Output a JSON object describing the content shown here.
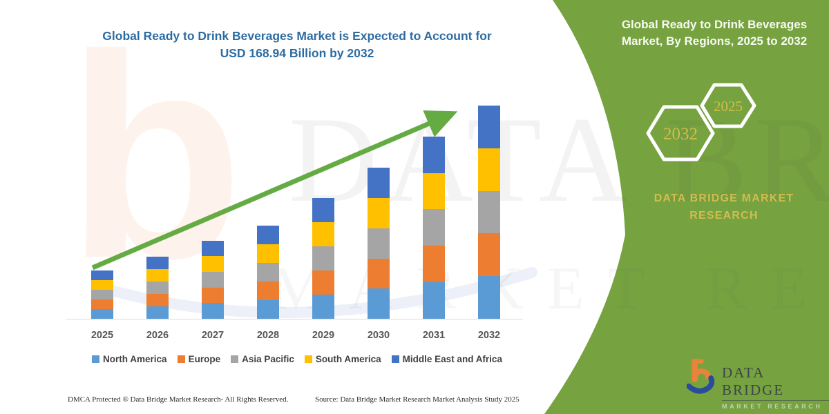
{
  "header": {
    "title_line1": "Global Ready to Drink Beverages Market is Expected to Account for",
    "title_line2": "USD 168.94 Billion by 2032"
  },
  "side_panel": {
    "title": "Global Ready to Drink Beverages Market, By Regions, 2025 to 2032",
    "hexagon_large_label": "2032",
    "hexagon_small_label": "2025",
    "brand_text": "DATA BRIDGE MARKET RESEARCH",
    "panel_color": "#76A240",
    "hexagon_text_color": "#cfbe4b"
  },
  "watermark": {
    "line1": "DATA BRIDGE",
    "line2": "MARKET RESEARCH",
    "letter_b": "b"
  },
  "chart_data": {
    "type": "bar",
    "stacked": true,
    "title": "Global Ready to Drink Beverages Market is Expected to Account for USD 168.94 Billion by 2032",
    "unit": "USD Billion",
    "categories": [
      "2025",
      "2026",
      "2027",
      "2028",
      "2029",
      "2030",
      "2031",
      "2032"
    ],
    "series": [
      {
        "name": "North America",
        "color": "#5B9BD5",
        "values": [
          7.7,
          9.9,
          12.4,
          14.8,
          19.1,
          23.9,
          28.9,
          33.8
        ]
      },
      {
        "name": "Europe",
        "color": "#ED7D31",
        "values": [
          7.7,
          9.9,
          12.4,
          14.8,
          19.1,
          23.9,
          28.9,
          33.8
        ]
      },
      {
        "name": "Asia Pacific",
        "color": "#A5A5A5",
        "values": [
          7.7,
          9.9,
          12.4,
          14.8,
          19.1,
          23.9,
          28.9,
          33.8
        ]
      },
      {
        "name": "South America",
        "color": "#FFC000",
        "values": [
          7.7,
          9.9,
          12.4,
          14.8,
          19.1,
          23.9,
          28.9,
          33.8
        ]
      },
      {
        "name": "Middle East and Africa",
        "color": "#4472C4",
        "values": [
          7.7,
          9.9,
          12.4,
          14.8,
          19.1,
          23.9,
          28.9,
          33.8
        ]
      }
    ],
    "totals_estimated": [
      38.3,
      49.7,
      61.8,
      73.8,
      95.7,
      119.7,
      144.3,
      168.94
    ],
    "ylim": [
      0,
      180
    ],
    "y_axis_shown": false,
    "grid": false,
    "legend_position": "bottom",
    "trend_arrow": true,
    "trend_arrow_color": "#65AB44"
  },
  "footer": {
    "left": "DMCA Protected ® Data Bridge Market Research-  All Rights Reserved.",
    "right": "Source: Data Bridge Market Research  Market Analysis Study 2025"
  },
  "logo": {
    "brand": "DATA BRIDGE",
    "subtitle": "MARKET RESEARCH"
  }
}
